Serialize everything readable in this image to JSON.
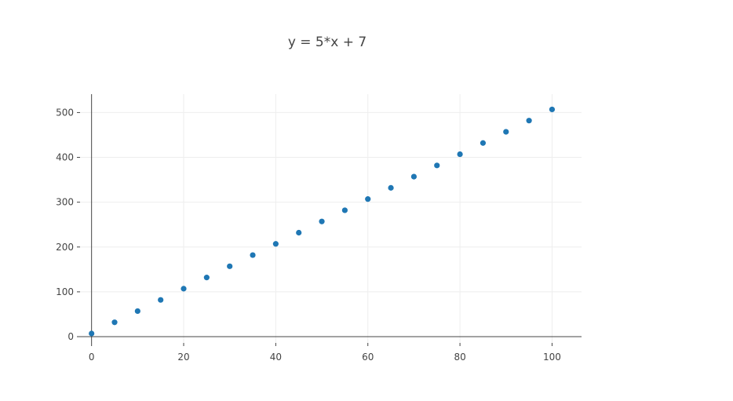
{
  "chart_data": {
    "type": "scatter",
    "title": "y = 5*x + 7",
    "xlabel": "",
    "ylabel": "",
    "xlim": [
      -2.5,
      106.4
    ],
    "ylim": [
      -14,
      541
    ],
    "grid": true,
    "x_ticks": [
      0,
      20,
      40,
      60,
      80,
      100
    ],
    "y_ticks": [
      0,
      100,
      200,
      300,
      400,
      500
    ],
    "marker_color": "#1f77b4",
    "series": [
      {
        "x": [
          0,
          5,
          10,
          15,
          20,
          25,
          30,
          35,
          40,
          45,
          50,
          55,
          60,
          65,
          70,
          75,
          80,
          85,
          90,
          95,
          100
        ],
        "y": [
          7,
          32,
          57,
          82,
          107,
          132,
          157,
          182,
          207,
          232,
          257,
          282,
          307,
          332,
          357,
          382,
          407,
          432,
          457,
          482,
          507
        ]
      }
    ]
  }
}
